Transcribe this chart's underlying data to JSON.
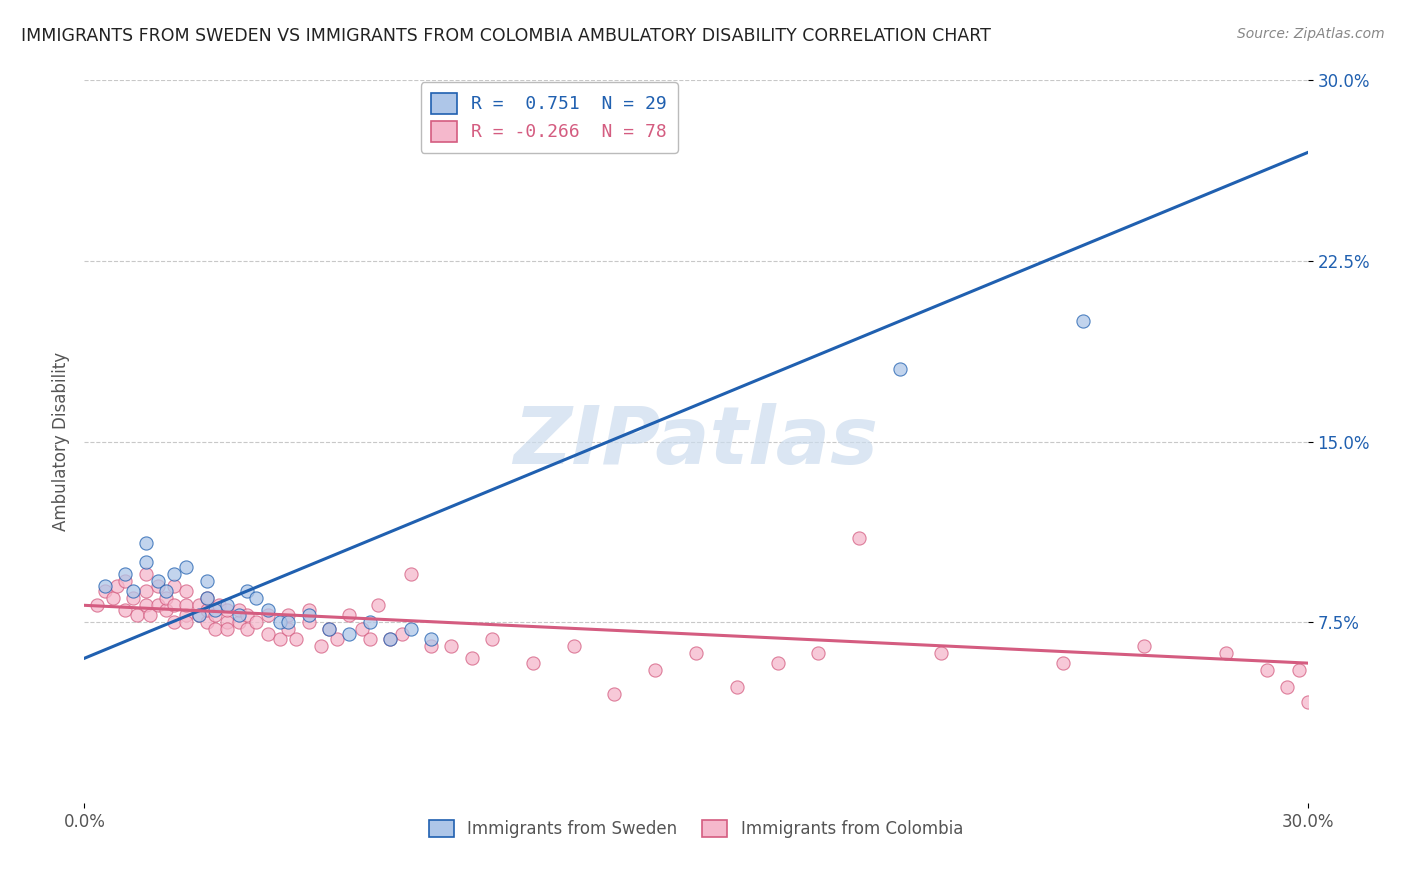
{
  "title": "IMMIGRANTS FROM SWEDEN VS IMMIGRANTS FROM COLOMBIA AMBULATORY DISABILITY CORRELATION CHART",
  "source": "Source: ZipAtlas.com",
  "ylabel": "Ambulatory Disability",
  "xlim": [
    0.0,
    0.3
  ],
  "ylim": [
    0.0,
    0.3
  ],
  "ytick_positions": [
    0.075,
    0.15,
    0.225,
    0.3
  ],
  "ytick_labels": [
    "7.5%",
    "15.0%",
    "22.5%",
    "30.0%"
  ],
  "sweden_R": 0.751,
  "sweden_N": 29,
  "colombia_R": -0.266,
  "colombia_N": 78,
  "sweden_color": "#aec6e8",
  "sweden_line_color": "#2060b0",
  "colombia_color": "#f5b8cc",
  "colombia_line_color": "#d45c80",
  "legend_sweden_label": "Immigrants from Sweden",
  "legend_colombia_label": "Immigrants from Colombia",
  "background_color": "#ffffff",
  "grid_color": "#c8c8c8",
  "title_color": "#222222",
  "watermark_color": "#ccdcee",
  "sweden_line_x": [
    0.0,
    0.3
  ],
  "sweden_line_y": [
    0.06,
    0.27
  ],
  "colombia_line_x": [
    0.0,
    0.3
  ],
  "colombia_line_y": [
    0.082,
    0.058
  ],
  "sweden_scatter_x": [
    0.005,
    0.01,
    0.012,
    0.015,
    0.015,
    0.018,
    0.02,
    0.022,
    0.025,
    0.028,
    0.03,
    0.03,
    0.032,
    0.035,
    0.038,
    0.04,
    0.042,
    0.045,
    0.048,
    0.05,
    0.055,
    0.06,
    0.065,
    0.07,
    0.075,
    0.08,
    0.085,
    0.2,
    0.245
  ],
  "sweden_scatter_y": [
    0.09,
    0.095,
    0.088,
    0.1,
    0.108,
    0.092,
    0.088,
    0.095,
    0.098,
    0.078,
    0.085,
    0.092,
    0.08,
    0.082,
    0.078,
    0.088,
    0.085,
    0.08,
    0.075,
    0.075,
    0.078,
    0.072,
    0.07,
    0.075,
    0.068,
    0.072,
    0.068,
    0.18,
    0.2
  ],
  "colombia_scatter_x": [
    0.003,
    0.005,
    0.007,
    0.008,
    0.01,
    0.01,
    0.012,
    0.013,
    0.015,
    0.015,
    0.015,
    0.016,
    0.018,
    0.018,
    0.02,
    0.02,
    0.022,
    0.022,
    0.022,
    0.025,
    0.025,
    0.025,
    0.025,
    0.028,
    0.028,
    0.03,
    0.03,
    0.03,
    0.032,
    0.032,
    0.033,
    0.035,
    0.035,
    0.035,
    0.038,
    0.038,
    0.04,
    0.04,
    0.042,
    0.045,
    0.045,
    0.048,
    0.05,
    0.05,
    0.052,
    0.055,
    0.055,
    0.058,
    0.06,
    0.062,
    0.065,
    0.068,
    0.07,
    0.072,
    0.075,
    0.078,
    0.08,
    0.085,
    0.09,
    0.095,
    0.1,
    0.11,
    0.12,
    0.13,
    0.14,
    0.15,
    0.16,
    0.17,
    0.18,
    0.19,
    0.21,
    0.24,
    0.26,
    0.28,
    0.29,
    0.295,
    0.298,
    0.3
  ],
  "colombia_scatter_y": [
    0.082,
    0.088,
    0.085,
    0.09,
    0.08,
    0.092,
    0.085,
    0.078,
    0.082,
    0.088,
    0.095,
    0.078,
    0.082,
    0.09,
    0.08,
    0.085,
    0.075,
    0.082,
    0.09,
    0.078,
    0.082,
    0.075,
    0.088,
    0.078,
    0.082,
    0.075,
    0.08,
    0.085,
    0.072,
    0.078,
    0.082,
    0.075,
    0.08,
    0.072,
    0.075,
    0.08,
    0.072,
    0.078,
    0.075,
    0.07,
    0.078,
    0.068,
    0.072,
    0.078,
    0.068,
    0.075,
    0.08,
    0.065,
    0.072,
    0.068,
    0.078,
    0.072,
    0.068,
    0.082,
    0.068,
    0.07,
    0.095,
    0.065,
    0.065,
    0.06,
    0.068,
    0.058,
    0.065,
    0.045,
    0.055,
    0.062,
    0.048,
    0.058,
    0.062,
    0.11,
    0.062,
    0.058,
    0.065,
    0.062,
    0.055,
    0.048,
    0.055,
    0.042
  ]
}
